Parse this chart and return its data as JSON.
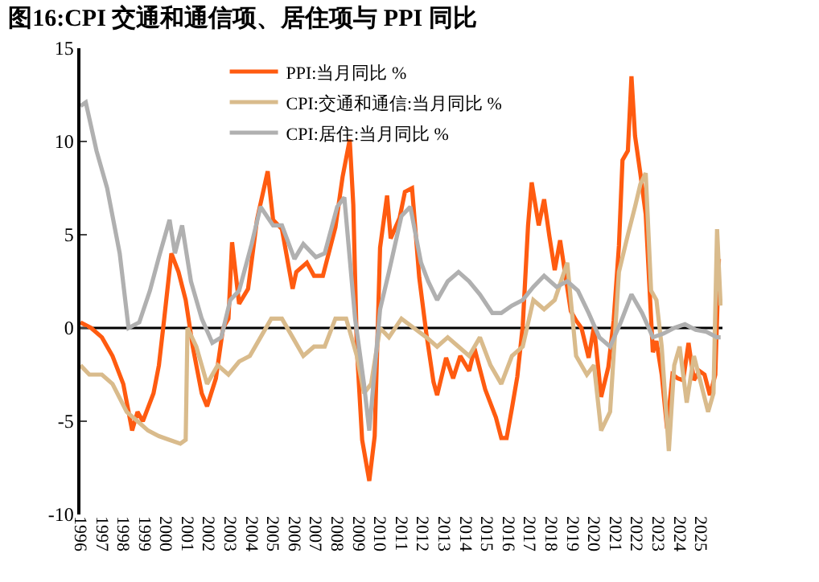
{
  "chart_data": {
    "type": "line",
    "title": "图16:CPI 交通和通信项、居住项与 PPI 同比",
    "xlim": [
      "1996-01-01",
      "2026-01-01"
    ],
    "xticks": [
      {
        "value": "1996-01-01",
        "label": "1996"
      },
      {
        "value": "1997-01-01",
        "label": "1997"
      },
      {
        "value": "1998-01-01",
        "label": "1998"
      },
      {
        "value": "1999-01-01",
        "label": "1999"
      },
      {
        "value": "2000-01-01",
        "label": "2000"
      },
      {
        "value": "2001-01-01",
        "label": "2001"
      },
      {
        "value": "2002-01-01",
        "label": "2002"
      },
      {
        "value": "2003-01-01",
        "label": "2003"
      },
      {
        "value": "2004-01-01",
        "label": "2004"
      },
      {
        "value": "2005-01-01",
        "label": "2005"
      },
      {
        "value": "2006-01-01",
        "label": "2006"
      },
      {
        "value": "2007-01-01",
        "label": "2007"
      },
      {
        "value": "2008-01-01",
        "label": "2008"
      },
      {
        "value": "2009-01-01",
        "label": "2009"
      },
      {
        "value": "2010-01-01",
        "label": "2010"
      },
      {
        "value": "2011-01-01",
        "label": "2011"
      },
      {
        "value": "2012-01-01",
        "label": "2012"
      },
      {
        "value": "2013-01-01",
        "label": "2013"
      },
      {
        "value": "2014-01-01",
        "label": "2014"
      },
      {
        "value": "2015-01-01",
        "label": "2015"
      },
      {
        "value": "2016-01-01",
        "label": "2016"
      },
      {
        "value": "2017-01-01",
        "label": "2017"
      },
      {
        "value": "2018-01-01",
        "label": "2018"
      },
      {
        "value": "2019-01-01",
        "label": "2019"
      },
      {
        "value": "2020-01-01",
        "label": "2020"
      },
      {
        "value": "2021-01-01",
        "label": "2021"
      },
      {
        "value": "2022-01-01",
        "label": "2022"
      },
      {
        "value": "2023-01-01",
        "label": "2023"
      },
      {
        "value": "2024-01-01",
        "label": "2024"
      },
      {
        "value": "2025-01-01",
        "label": "2025"
      }
    ],
    "ylim": [
      -10,
      15
    ],
    "yticks": [
      -10,
      -5,
      0,
      5,
      10,
      15
    ],
    "ref_lines": [
      {
        "axis": "y",
        "value": 0,
        "color": "#000000"
      }
    ],
    "grid": false,
    "legend": "top left",
    "marker": "none",
    "line_style": "solid",
    "series": [
      {
        "name": "PPI:当月同比 %",
        "color": "#ff5b10",
        "x": [
          "1996-01",
          "1996-07",
          "1997-01",
          "1997-07",
          "1998-01",
          "1998-06",
          "1998-09",
          "1998-12",
          "1999-06",
          "1999-09",
          "1999-12",
          "2000-04",
          "2000-08",
          "2000-12",
          "2001-04",
          "2001-09",
          "2001-12",
          "2002-05",
          "2002-09",
          "2002-12",
          "2003-02",
          "2003-06",
          "2003-11",
          "2004-04",
          "2004-10",
          "2005-01",
          "2005-06",
          "2005-12",
          "2006-02",
          "2006-08",
          "2006-12",
          "2007-05",
          "2007-12",
          "2008-04",
          "2008-08",
          "2008-10",
          "2008-12",
          "2009-03",
          "2009-07",
          "2009-10",
          "2010-01",
          "2010-05",
          "2010-07",
          "2010-12",
          "2011-03",
          "2011-07",
          "2011-11",
          "2012-03",
          "2012-07",
          "2012-09",
          "2013-02",
          "2013-06",
          "2013-10",
          "2014-03",
          "2014-06",
          "2014-12",
          "2015-06",
          "2015-09",
          "2015-12",
          "2016-03",
          "2016-06",
          "2016-09",
          "2016-12",
          "2017-02",
          "2017-06",
          "2017-09",
          "2017-12",
          "2018-03",
          "2018-06",
          "2018-12",
          "2019-03",
          "2019-06",
          "2019-10",
          "2020-01",
          "2020-05",
          "2020-09",
          "2020-12",
          "2021-03",
          "2021-05",
          "2021-08",
          "2021-10",
          "2021-12",
          "2022-03",
          "2022-06",
          "2022-10",
          "2022-12",
          "2023-03",
          "2023-06",
          "2023-09",
          "2023-12",
          "2024-03",
          "2024-06",
          "2024-09",
          "2024-12",
          "2025-03",
          "2025-06",
          "2025-09",
          "2025-11"
        ],
        "values": [
          0.3,
          0,
          -0.5,
          -1.5,
          -3,
          -5.5,
          -4.5,
          -5,
          -3.5,
          -2,
          0.5,
          4,
          3,
          1.5,
          -1,
          -3.5,
          -4.2,
          -2.7,
          0,
          0.5,
          4.6,
          1.3,
          2.1,
          5.8,
          8.4,
          5.8,
          5.3,
          2.1,
          3,
          3.5,
          2.8,
          2.8,
          5.4,
          8.1,
          10.1,
          6.6,
          -1.1,
          -6,
          -8.2,
          -5.8,
          4.3,
          7.1,
          4.8,
          5.9,
          7.3,
          7.5,
          2.7,
          -0.3,
          -2.9,
          -3.6,
          -1.6,
          -2.7,
          -1.5,
          -2.3,
          -1.1,
          -3.3,
          -4.8,
          -5.9,
          -5.9,
          -4.3,
          -2.6,
          0.1,
          5.5,
          7.8,
          5.5,
          6.9,
          4.9,
          3.1,
          4.7,
          0.9,
          0.4,
          0,
          -1.6,
          0.1,
          -3.7,
          -2.1,
          0.4,
          4.4,
          9,
          9.5,
          13.5,
          10.3,
          8.3,
          6.1,
          -1.3,
          -0.7,
          -2.5,
          -5.4,
          -2.5,
          -2.7,
          -2.8,
          -0.8,
          -2.8,
          -2.3,
          -2.5,
          -3.6,
          -2.5,
          3.7
        ]
      },
      {
        "name": "CPI:交通和通信:当月同比 %",
        "color": "#d9bb8c",
        "x": [
          "1996-01",
          "1996-06",
          "1997-01",
          "1997-07",
          "1998-03",
          "1998-09",
          "1999-03",
          "1999-09",
          "2000-03",
          "2000-09",
          "2000-12",
          "2001-01",
          "2001-06",
          "2001-12",
          "2002-06",
          "2002-12",
          "2003-06",
          "2003-12",
          "2004-06",
          "2004-12",
          "2005-06",
          "2005-12",
          "2006-06",
          "2006-12",
          "2007-06",
          "2007-12",
          "2008-06",
          "2008-12",
          "2009-04",
          "2009-08",
          "2010-01",
          "2010-06",
          "2011-01",
          "2011-08",
          "2012-03",
          "2012-09",
          "2013-03",
          "2013-09",
          "2014-03",
          "2014-09",
          "2015-03",
          "2015-09",
          "2016-03",
          "2016-09",
          "2017-03",
          "2017-09",
          "2018-03",
          "2018-10",
          "2019-03",
          "2019-09",
          "2020-01",
          "2020-05",
          "2020-10",
          "2021-03",
          "2021-08",
          "2021-12",
          "2022-03",
          "2022-06",
          "2022-09",
          "2022-12",
          "2023-03",
          "2023-07",
          "2023-10",
          "2024-01",
          "2024-05",
          "2024-09",
          "2025-01",
          "2025-05",
          "2025-08",
          "2025-10",
          "2025-12"
        ],
        "values": [
          -2,
          -2.5,
          -2.5,
          -3,
          -4.5,
          -5,
          -5.5,
          -5.8,
          -6,
          -6.2,
          -6,
          0,
          -1,
          -3,
          -2,
          -2.5,
          -1.8,
          -1.5,
          -0.5,
          0.5,
          0.5,
          -0.5,
          -1.5,
          -1,
          -1,
          0.5,
          0.5,
          -1.5,
          -3.5,
          -3,
          0,
          -0.5,
          0.5,
          0,
          -0.5,
          -1,
          -0.5,
          -1,
          -1.5,
          -0.5,
          -2,
          -3,
          -1.5,
          -1,
          1.5,
          1,
          1.5,
          3.5,
          -1.5,
          -2.5,
          -2,
          -5.5,
          -4.5,
          3,
          5,
          6.5,
          7.7,
          8.3,
          2,
          1.5,
          -1,
          -6.6,
          -2,
          -1,
          -4,
          -1.5,
          -3,
          -4.5,
          -3.5,
          5.3,
          1.2
        ]
      },
      {
        "name": "CPI:居住:当月同比 %",
        "color": "#b0b0b0",
        "x": [
          "1996-01",
          "1996-04",
          "1996-10",
          "1997-04",
          "1997-11",
          "1998-04",
          "1998-10",
          "1999-04",
          "1999-09",
          "2000-03",
          "2000-06",
          "2000-10",
          "2001-03",
          "2001-09",
          "2002-03",
          "2002-08",
          "2003-01",
          "2003-06",
          "2004-01",
          "2004-06",
          "2005-01",
          "2005-06",
          "2006-01",
          "2006-06",
          "2007-01",
          "2007-06",
          "2008-01",
          "2008-05",
          "2008-11",
          "2009-04",
          "2009-07",
          "2010-01",
          "2010-06",
          "2011-01",
          "2011-06",
          "2011-12",
          "2012-04",
          "2012-09",
          "2013-03",
          "2013-09",
          "2014-03",
          "2014-09",
          "2015-04",
          "2015-09",
          "2016-03",
          "2016-09",
          "2017-03",
          "2017-09",
          "2018-04",
          "2018-10",
          "2019-04",
          "2019-10",
          "2020-04",
          "2020-10",
          "2021-04",
          "2021-10",
          "2022-04",
          "2022-10",
          "2023-04",
          "2023-10",
          "2024-04",
          "2024-10",
          "2025-04",
          "2025-10",
          "2025-12"
        ],
        "values": [
          11.9,
          12.1,
          9.5,
          7.5,
          4,
          0,
          0.3,
          2,
          3.8,
          5.8,
          4,
          5.5,
          2.5,
          0.5,
          -0.8,
          -0.5,
          1.5,
          2,
          4.5,
          6.5,
          5.5,
          5.5,
          3.7,
          4.5,
          3.8,
          4,
          6.5,
          7,
          0.5,
          -3,
          -5.5,
          1,
          3,
          6,
          6.5,
          3.5,
          2.5,
          1.5,
          2.5,
          3,
          2.5,
          1.8,
          0.8,
          0.8,
          1.2,
          1.5,
          2.2,
          2.8,
          2.2,
          2.5,
          2,
          0.8,
          -0.5,
          -1,
          0.3,
          1.8,
          0.8,
          -0.5,
          -0.3,
          0,
          0.2,
          -0.1,
          -0.2,
          -0.5,
          -0.5
        ]
      }
    ]
  }
}
